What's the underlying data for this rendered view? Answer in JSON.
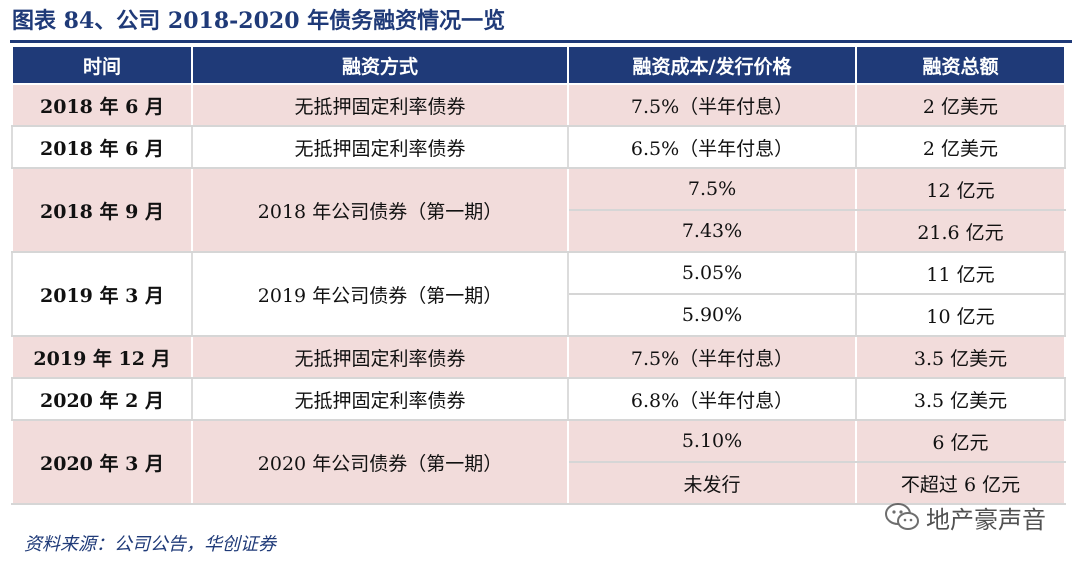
{
  "title": "图表 84、公司 2018-2020 年债务融资情况一览",
  "table": {
    "headers": [
      "时间",
      "融资方式",
      "融资成本/发行价格",
      "融资总额"
    ]
  },
  "rows": [
    {
      "date": "2018 年 6 月",
      "method": "无抵押固定利率债券",
      "cost": "7.5%（半年付息）",
      "amount": "2 亿美元"
    },
    {
      "date": "2018 年 6 月",
      "method": "无抵押固定利率债券",
      "cost": "6.5%（半年付息）",
      "amount": "2 亿美元"
    },
    {
      "date": "2018 年 9 月",
      "method": "2018 年公司债券（第一期）",
      "cost_a": "7.5%",
      "amount_a": "12 亿元",
      "cost_b": "7.43%",
      "amount_b": "21.6 亿元"
    },
    {
      "date": "2019 年 3 月",
      "method": "2019 年公司债券（第一期）",
      "cost_a": "5.05%",
      "amount_a": "11 亿元",
      "cost_b": "5.90%",
      "amount_b": "10 亿元"
    },
    {
      "date": "2019 年 12 月",
      "method": "无抵押固定利率债券",
      "cost": "7.5%（半年付息）",
      "amount": "3.5 亿美元"
    },
    {
      "date": "2020 年 2 月",
      "method": "无抵押固定利率债券",
      "cost": "6.8%（半年付息）",
      "amount": "3.5 亿美元"
    },
    {
      "date": "2020 年 3 月",
      "method": "2020 年公司债券（第一期）",
      "cost_a": "5.10%",
      "amount_a": "6 亿元",
      "cost_b": "未发行",
      "amount_b": "不超过 6 亿元"
    }
  ],
  "source": "资料来源：公司公告，华创证券",
  "watermark": "地产豪声音",
  "colors": {
    "header_bg": "#1f3a78",
    "pink_row": "#f2dcdb",
    "title": "#1f3a78"
  }
}
